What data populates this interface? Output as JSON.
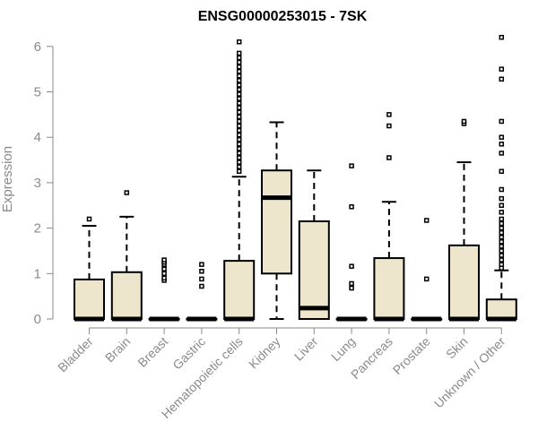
{
  "chart_data": {
    "type": "boxplot",
    "title": "ENSG00000253015 - 7SK",
    "ylabel": "Expression",
    "xlabel": "",
    "ylim": [
      0,
      6.2
    ],
    "yticks": [
      0,
      1,
      2,
      3,
      4,
      5,
      6
    ],
    "box_fill": "#eee6cc",
    "categories": [
      "Bladder",
      "Brain",
      "Breast",
      "Gastric",
      "Hematopoietic cells",
      "Kidney",
      "Liver",
      "Lung",
      "Pancreas",
      "Prostate",
      "Skin",
      "Unknown / Other"
    ],
    "boxes": [
      {
        "min": 0,
        "q1": 0,
        "median": 0,
        "q3": 0.87,
        "max": 2.05,
        "outliers": [
          2.2
        ]
      },
      {
        "min": 0,
        "q1": 0,
        "median": 0,
        "q3": 1.03,
        "max": 2.25,
        "outliers": [
          2.78
        ]
      },
      {
        "min": 0,
        "q1": 0,
        "median": 0,
        "q3": 0,
        "max": 0,
        "outliers": [
          0.85,
          0.9,
          1.0,
          1.1,
          1.2,
          1.25,
          1.3
        ]
      },
      {
        "min": 0,
        "q1": 0,
        "median": 0,
        "q3": 0,
        "max": 0,
        "outliers": [
          0.72,
          0.88,
          1.05,
          1.2
        ]
      },
      {
        "min": 0,
        "q1": 0,
        "median": 0,
        "q3": 1.28,
        "max": 3.13,
        "outliers": [
          3.25,
          3.35,
          3.45,
          3.55,
          3.65,
          3.75,
          3.85,
          3.95,
          4.05,
          4.15,
          4.25,
          4.35,
          4.45,
          4.55,
          4.65,
          4.75,
          4.85,
          4.95,
          5.05,
          5.15,
          5.25,
          5.35,
          5.45,
          5.55,
          5.65,
          5.75,
          5.85,
          6.1
        ]
      },
      {
        "min": 0,
        "q1": 1.0,
        "median": 2.67,
        "q3": 3.27,
        "max": 4.33,
        "outliers": []
      },
      {
        "min": 0,
        "q1": 0,
        "median": 0.24,
        "q3": 2.15,
        "max": 3.27,
        "outliers": []
      },
      {
        "min": 0,
        "q1": 0,
        "median": 0,
        "q3": 0,
        "max": 0,
        "outliers": [
          0.68,
          0.78,
          1.16,
          2.47,
          3.37
        ]
      },
      {
        "min": 0,
        "q1": 0,
        "median": 0,
        "q3": 1.34,
        "max": 2.58,
        "outliers": [
          3.55,
          4.25,
          4.5
        ]
      },
      {
        "min": 0,
        "q1": 0,
        "median": 0,
        "q3": 0,
        "max": 0,
        "outliers": [
          0.88,
          2.17
        ]
      },
      {
        "min": 0,
        "q1": 0,
        "median": 0,
        "q3": 1.62,
        "max": 3.45,
        "outliers": [
          4.3,
          4.35
        ]
      },
      {
        "min": 0,
        "q1": 0,
        "median": 0,
        "q3": 0.43,
        "max": 1.07,
        "outliers": [
          1.12,
          1.2,
          1.3,
          1.4,
          1.5,
          1.6,
          1.7,
          1.8,
          1.9,
          2.0,
          2.1,
          2.2,
          2.35,
          2.5,
          2.65,
          2.85,
          3.25,
          3.65,
          3.85,
          4.0,
          4.35,
          5.28,
          5.5,
          6.2
        ]
      }
    ]
  }
}
